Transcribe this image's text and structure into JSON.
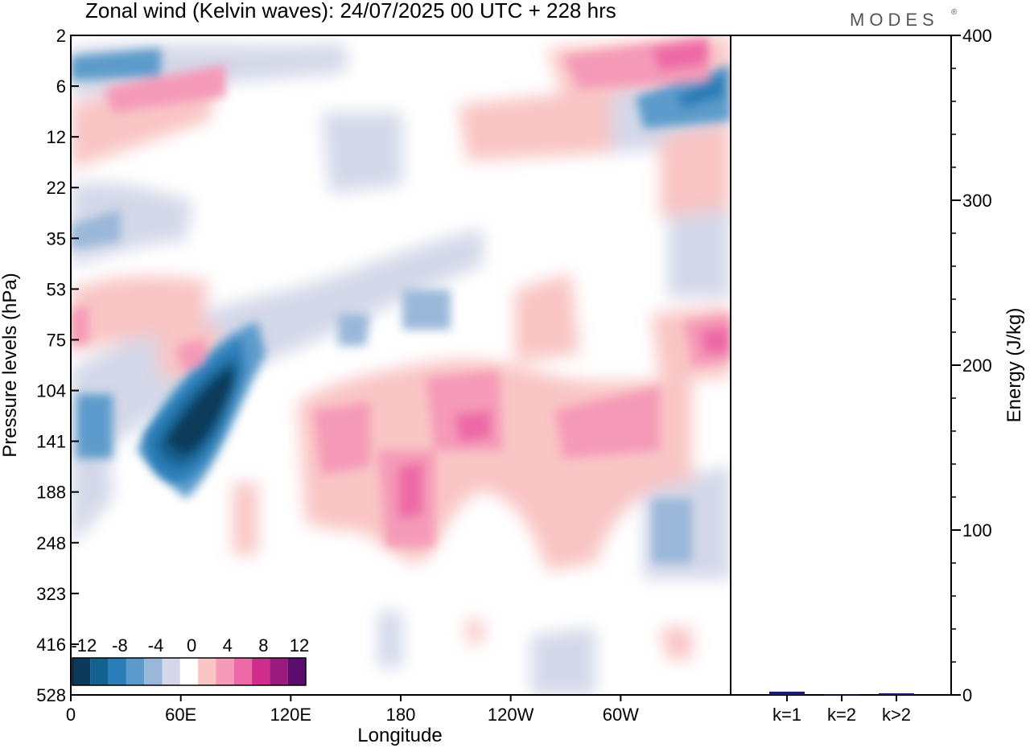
{
  "chart_data": {
    "type": "heatmap",
    "title": "Zonal wind (Kelvin waves):  24/07/2025  00 UTC  + 228 hrs",
    "brand": "MODES",
    "brand_mark": "®",
    "xlabel": "Longitude",
    "ylabel": "Pressure levels (hPa)",
    "x_ticks": [
      "0",
      "60E",
      "120E",
      "180",
      "120W",
      "60W"
    ],
    "x_tick_values": [
      0,
      60,
      120,
      180,
      240,
      300
    ],
    "xlim": [
      0,
      360
    ],
    "y_ticks": [
      "2",
      "6",
      "12",
      "22",
      "35",
      "53",
      "75",
      "104",
      "141",
      "188",
      "248",
      "323",
      "416",
      "528"
    ],
    "colorbar": {
      "labels": [
        "-12",
        "-8",
        "-4",
        "0",
        "4",
        "8",
        "12"
      ],
      "levels": [
        -14,
        -12,
        -10,
        -8,
        -6,
        -4,
        -2,
        2,
        4,
        6,
        8,
        10,
        12,
        14
      ],
      "colors": [
        "#0b3a5a",
        "#12618f",
        "#2a7db8",
        "#5b9bcb",
        "#9ab7d9",
        "#d4d8e8",
        "#ffffff",
        "#f9c5c5",
        "#f59ab8",
        "#ed6aa6",
        "#cf2c8c",
        "#9b1a7d",
        "#5a0d6e"
      ]
    },
    "features": [
      {
        "name": "strong easterly core",
        "value": -14,
        "lon": [
          40,
          95
        ],
        "level": "75-188 hPa"
      },
      {
        "name": "westerly anomaly",
        "value": 10,
        "lon": [
          180,
          190
        ],
        "level": "141-248 hPa"
      },
      {
        "name": "westerly anomaly",
        "value": 8,
        "lon": [
          210,
          235
        ],
        "level": "104-188 hPa"
      },
      {
        "name": "upper easterly band",
        "value": -10,
        "lon": [
          305,
          360
        ],
        "level": "2-12 hPa"
      }
    ],
    "energy_panel": {
      "type": "bar",
      "ylabel": "Energy (J/kg)",
      "ylim": [
        0,
        400
      ],
      "y_ticks": [
        "0",
        "100",
        "200",
        "300",
        "400"
      ],
      "categories": [
        "k=1",
        "k=2",
        "k>2"
      ],
      "values": [
        2,
        0.3,
        1
      ],
      "bar_color": "#1a1a6e"
    }
  }
}
